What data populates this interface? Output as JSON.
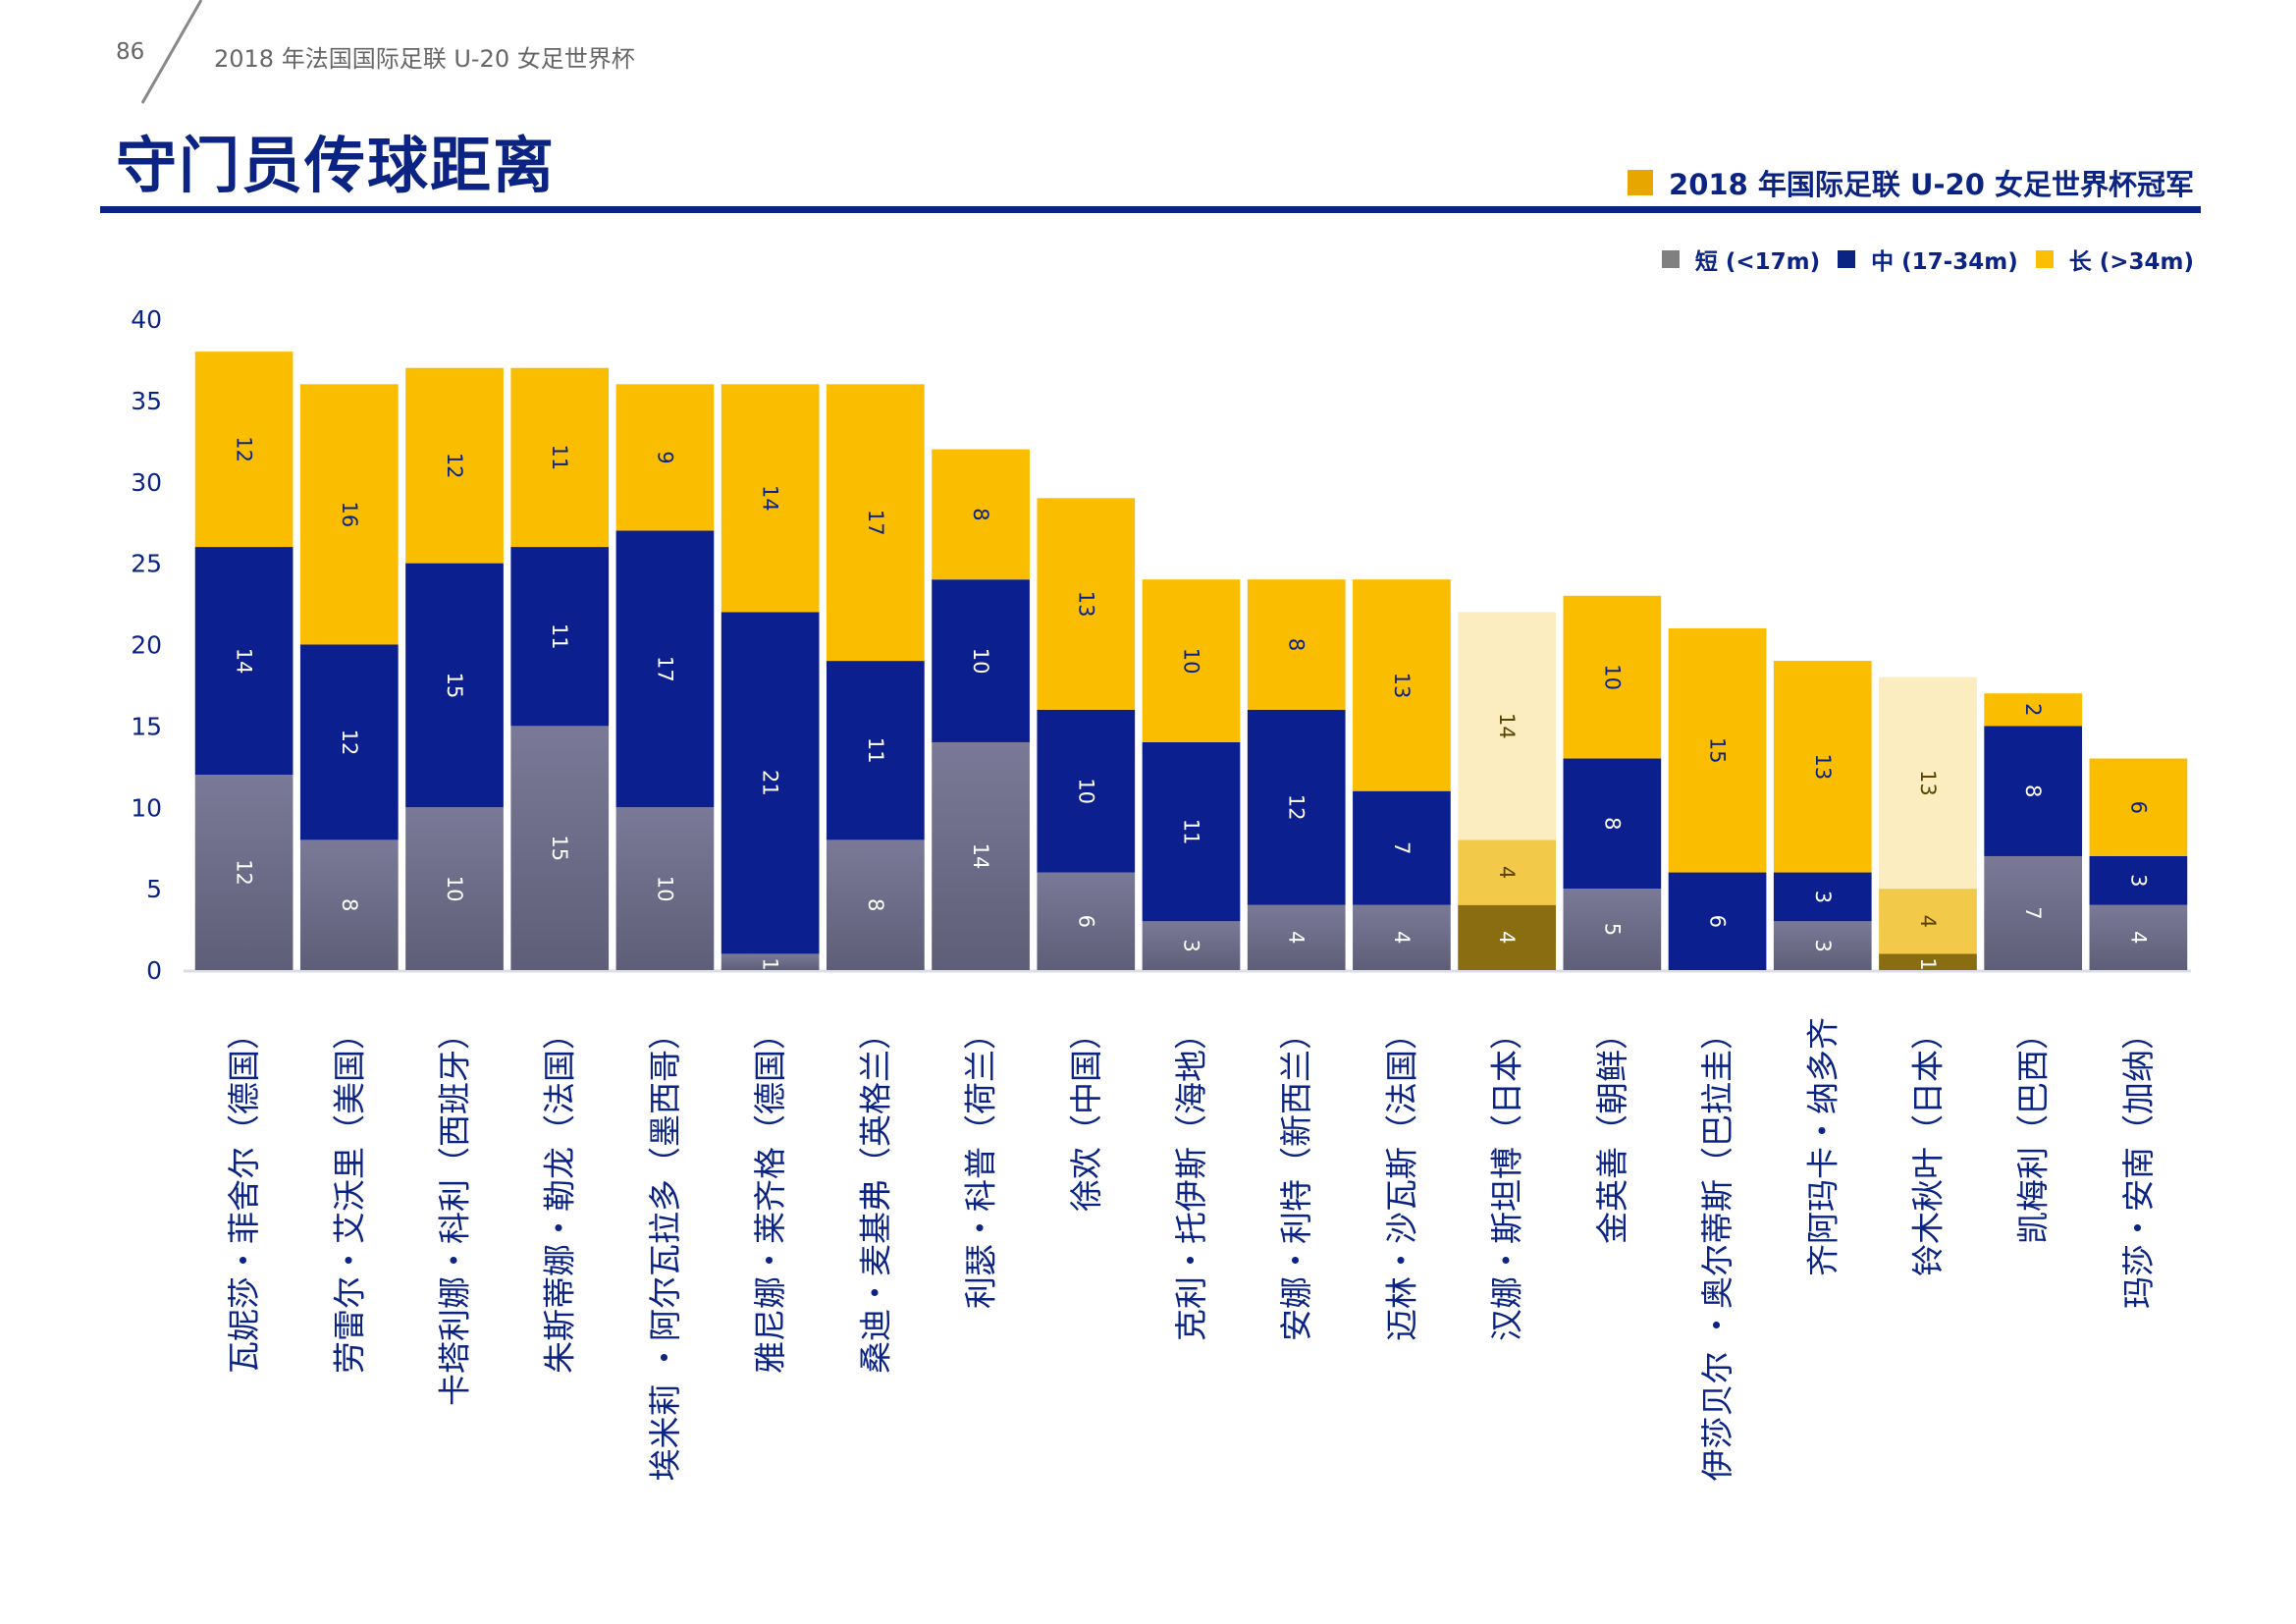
{
  "header": {
    "page_number": "86",
    "running_title": "2018 年法国国际足联 U-20 女足世界杯"
  },
  "title": "守门员传球距离",
  "champion_legend": {
    "label": "2018 年国际足联 U-20 女足世界杯冠军"
  },
  "legend": [
    {
      "label": "短 (<17m)",
      "color": "#808080"
    },
    {
      "label": "中 (17-34m)",
      "color": "#0b2483"
    },
    {
      "label": "长 (>34m)",
      "color": "#fbbd00"
    }
  ],
  "colors": {
    "short": "#7c7c98",
    "medium": "#0c1f8f",
    "long": "#fbbd00",
    "short_faded": "#8a6d10",
    "medium_faded": "#f3c94a",
    "long_faded": "#fbedc0",
    "axis_text": "#0b2483"
  },
  "chart_data": {
    "type": "bar",
    "stacked": true,
    "ylim": [
      0,
      40
    ],
    "yticks": [
      0,
      5,
      10,
      15,
      20,
      25,
      30,
      35,
      40
    ],
    "categories": [
      "瓦妮莎・菲舍尔（德国）",
      "劳雷尔・艾沃里（美国）",
      "卡塔利娜・科利（西班牙）",
      "朱斯蒂娜・勒龙（法国）",
      "埃米莉 ・阿尔瓦拉多（墨西哥）",
      "雅尼娜・莱齐格（德国）",
      "桑迪・麦基弗（英格兰）",
      "利瑟・科普（荷兰）",
      "徐欢（中国）",
      "克利・托伊斯（海地）",
      "安娜・利特（新西兰）",
      "迈林・沙瓦斯（法国）",
      "汉娜・斯坦博（日本）",
      "金英善（朝鲜）",
      "伊莎贝尔 ・奥尔蒂斯（巴拉圭）",
      "齐阿玛卡・纳多齐",
      "铃木秋叶（日本）",
      "凯梅利（巴西）",
      "玛莎・安南（加纳）"
    ],
    "series": [
      {
        "name": "短 (<17m)",
        "values": [
          12,
          8,
          10,
          15,
          10,
          1,
          8,
          14,
          6,
          3,
          4,
          4,
          4,
          5,
          0,
          3,
          1,
          7,
          4
        ]
      },
      {
        "name": "中 (17-34m)",
        "values": [
          14,
          12,
          15,
          11,
          17,
          21,
          11,
          10,
          10,
          11,
          12,
          7,
          4,
          8,
          6,
          3,
          4,
          8,
          3
        ]
      },
      {
        "name": "长 (>34m)",
        "values": [
          12,
          16,
          12,
          11,
          9,
          14,
          17,
          8,
          13,
          10,
          8,
          13,
          14,
          10,
          15,
          13,
          13,
          2,
          6
        ]
      }
    ],
    "champions": [
      false,
      false,
      false,
      false,
      false,
      false,
      false,
      false,
      false,
      false,
      false,
      false,
      true,
      false,
      false,
      false,
      true,
      false,
      false
    ],
    "segment_labels": [
      [
        "12",
        "14",
        "12"
      ],
      [
        "8",
        "12",
        "16"
      ],
      [
        "10",
        "15",
        "12"
      ],
      [
        "15",
        "11",
        "11"
      ],
      [
        "10",
        "17",
        "9"
      ],
      [
        "1",
        "21",
        "14"
      ],
      [
        "8",
        "11",
        "17"
      ],
      [
        "14",
        "10",
        "8"
      ],
      [
        "6",
        "10",
        "13"
      ],
      [
        "3",
        "11",
        "10"
      ],
      [
        "4",
        "12",
        "8"
      ],
      [
        "4",
        "7",
        "13"
      ],
      [
        "4",
        "4",
        "14"
      ],
      [
        "5",
        "8",
        "10"
      ],
      [
        "",
        "6",
        "15"
      ],
      [
        "3",
        "3",
        "13"
      ],
      [
        "1",
        "4",
        "13"
      ],
      [
        "7",
        "8",
        "2"
      ],
      [
        "4",
        "3",
        "6"
      ]
    ]
  }
}
